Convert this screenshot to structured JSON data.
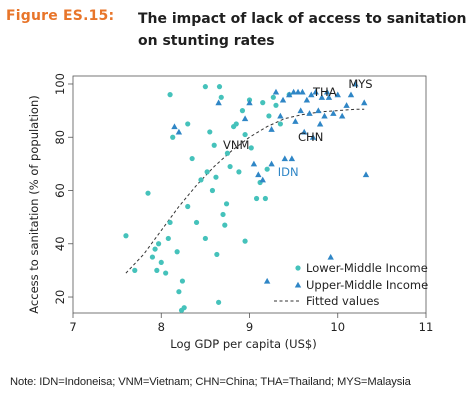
{
  "figure": {
    "label": "Figure ES.15:",
    "title": "The impact of lack of access to sanitation on stunting rates"
  },
  "note": "Note: IDN=Indoneisa; VNM=Vietnam; CHN=China; THA=Thailand; MYS=Malaysia",
  "colors": {
    "label": "#e8752a",
    "lower_middle": "#45c2bb",
    "upper_middle": "#2f86c6",
    "fit": "#333333",
    "idn": "#2f86c6"
  },
  "chart_data": {
    "type": "scatter",
    "xlabel": "Log GDP per capita (US$)",
    "ylabel": "Access to sanitation (% of population)",
    "xlim": [
      7,
      11
    ],
    "ylim": [
      14,
      103
    ],
    "x_ticks": [
      7,
      8,
      9,
      10,
      11
    ],
    "y_ticks": [
      20,
      40,
      60,
      80,
      100
    ],
    "grid": false,
    "legend_position": "bottom-right",
    "series": [
      {
        "name": "Lower-Middle Income",
        "marker": "circle",
        "points": [
          [
            7.6,
            43
          ],
          [
            7.7,
            30
          ],
          [
            7.85,
            59
          ],
          [
            7.9,
            35
          ],
          [
            7.93,
            38
          ],
          [
            7.95,
            30
          ],
          [
            7.97,
            40
          ],
          [
            8.0,
            33
          ],
          [
            8.05,
            29
          ],
          [
            8.08,
            42
          ],
          [
            8.1,
            96
          ],
          [
            8.1,
            48
          ],
          [
            8.13,
            80
          ],
          [
            8.18,
            37
          ],
          [
            8.2,
            22
          ],
          [
            8.23,
            15
          ],
          [
            8.24,
            26
          ],
          [
            8.26,
            16
          ],
          [
            8.3,
            85
          ],
          [
            8.3,
            54
          ],
          [
            8.35,
            72
          ],
          [
            8.4,
            48
          ],
          [
            8.45,
            64
          ],
          [
            8.5,
            99
          ],
          [
            8.5,
            42
          ],
          [
            8.52,
            67
          ],
          [
            8.55,
            82
          ],
          [
            8.58,
            60
          ],
          [
            8.6,
            77
          ],
          [
            8.62,
            65
          ],
          [
            8.63,
            36
          ],
          [
            8.65,
            18
          ],
          [
            8.66,
            99
          ],
          [
            8.68,
            95
          ],
          [
            8.7,
            51
          ],
          [
            8.72,
            47
          ],
          [
            8.74,
            55
          ],
          [
            8.75,
            74
          ],
          [
            8.78,
            69
          ],
          [
            8.82,
            84
          ],
          [
            8.85,
            85
          ],
          [
            8.88,
            67
          ],
          [
            8.92,
            90
          ],
          [
            8.95,
            81
          ],
          [
            8.95,
            41
          ],
          [
            9.0,
            94
          ],
          [
            9.02,
            76
          ],
          [
            9.08,
            57
          ],
          [
            9.12,
            63
          ],
          [
            9.15,
            93
          ],
          [
            9.18,
            57
          ],
          [
            9.2,
            68
          ],
          [
            9.22,
            88
          ],
          [
            9.27,
            95
          ],
          [
            9.3,
            92
          ],
          [
            9.35,
            85
          ],
          [
            9.45,
            96
          ]
        ]
      },
      {
        "name": "Upper-Middle Income",
        "marker": "triangle",
        "points": [
          [
            8.15,
            84
          ],
          [
            8.2,
            82
          ],
          [
            8.65,
            93
          ],
          [
            8.95,
            87
          ],
          [
            9.0,
            93
          ],
          [
            9.05,
            70
          ],
          [
            9.1,
            66
          ],
          [
            9.15,
            64
          ],
          [
            9.2,
            26
          ],
          [
            9.25,
            70
          ],
          [
            9.25,
            83
          ],
          [
            9.3,
            97
          ],
          [
            9.35,
            88
          ],
          [
            9.38,
            94
          ],
          [
            9.4,
            72
          ],
          [
            9.45,
            96
          ],
          [
            9.48,
            72
          ],
          [
            9.5,
            97
          ],
          [
            9.52,
            86
          ],
          [
            9.55,
            97
          ],
          [
            9.58,
            90
          ],
          [
            9.6,
            97
          ],
          [
            9.62,
            82
          ],
          [
            9.65,
            94
          ],
          [
            9.68,
            89
          ],
          [
            9.7,
            96
          ],
          [
            9.72,
            80
          ],
          [
            9.75,
            97
          ],
          [
            9.78,
            90
          ],
          [
            9.8,
            85
          ],
          [
            9.82,
            95
          ],
          [
            9.85,
            88
          ],
          [
            9.88,
            97
          ],
          [
            9.9,
            95
          ],
          [
            9.92,
            35
          ],
          [
            9.95,
            89
          ],
          [
            10.0,
            96
          ],
          [
            10.05,
            88
          ],
          [
            10.1,
            92
          ],
          [
            10.15,
            96
          ],
          [
            10.2,
            100
          ],
          [
            10.3,
            93
          ],
          [
            10.32,
            66
          ]
        ]
      }
    ],
    "fitted": {
      "name": "Fitted values",
      "points": [
        [
          7.6,
          29
        ],
        [
          7.8,
          36
        ],
        [
          8.0,
          45
        ],
        [
          8.2,
          54
        ],
        [
          8.4,
          62
        ],
        [
          8.6,
          69
        ],
        [
          8.8,
          75
        ],
        [
          9.0,
          80
        ],
        [
          9.2,
          84
        ],
        [
          9.4,
          87
        ],
        [
          9.6,
          88.5
        ],
        [
          9.8,
          89.5
        ],
        [
          10.0,
          90
        ],
        [
          10.2,
          90.5
        ],
        [
          10.3,
          90.5
        ]
      ]
    },
    "annotations": [
      {
        "text": "THA",
        "x": 9.72,
        "y": 97,
        "color": "#1f1f1f"
      },
      {
        "text": "MYS",
        "x": 10.12,
        "y": 100,
        "color": "#1f1f1f"
      },
      {
        "text": "VNM",
        "x": 8.7,
        "y": 77,
        "color": "#1f1f1f"
      },
      {
        "text": "CHN",
        "x": 9.55,
        "y": 80,
        "color": "#1f1f1f"
      },
      {
        "text": "IDN",
        "x": 9.32,
        "y": 67,
        "color": "#2f86c6"
      }
    ]
  }
}
